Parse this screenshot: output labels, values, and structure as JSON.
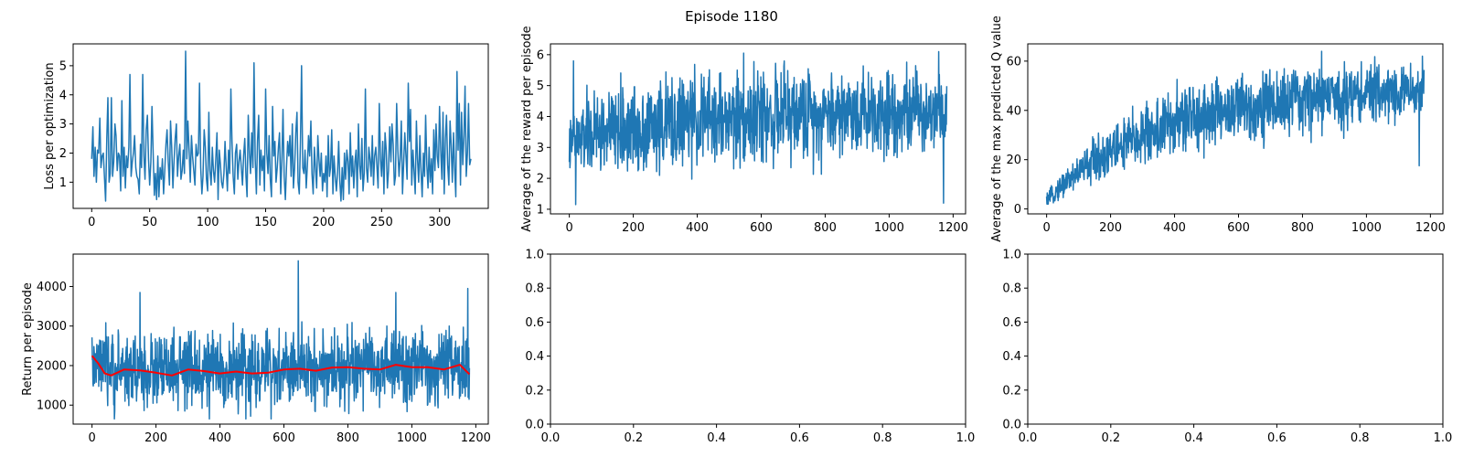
{
  "figure": {
    "title": "Episode 1180",
    "colors": {
      "series": "#1f77b4",
      "smoothed": "#ff0000",
      "axes": "#000000",
      "background": "#ffffff"
    }
  },
  "chart_data": [
    {
      "id": "loss",
      "type": "line",
      "title": "",
      "xlabel": "",
      "ylabel": "Loss per optimization",
      "xlim": [
        -16,
        342
      ],
      "ylim": [
        0.1,
        5.75
      ],
      "xticks": [
        0,
        50,
        100,
        150,
        200,
        250,
        300
      ],
      "yticks": [
        1,
        2,
        3,
        4,
        5
      ],
      "series": [
        {
          "x_range": [
            0,
            327
          ],
          "values": [
            1.8,
            2.9,
            1.2,
            2.2,
            1.0,
            2.1,
            2.0,
            3.2,
            1.5,
            1.9,
            2.0,
            1.2,
            0.35,
            2.5,
            3.9,
            1.0,
            1.3,
            3.9,
            1.2,
            1.7,
            3.0,
            2.6,
            1.4,
            2.0,
            1.9,
            0.7,
            3.8,
            1.2,
            2.2,
            0.8,
            1.9,
            1.5,
            2.2,
            4.7,
            1.2,
            1.7,
            2.0,
            2.6,
            1.5,
            1.2,
            1.1,
            0.6,
            2.3,
            1.5,
            4.7,
            1.9,
            1.1,
            2.8,
            3.3,
            1.8,
            0.9,
            1.7,
            3.6,
            2.0,
            0.55,
            1.3,
            0.4,
            1.9,
            0.5,
            1.5,
            1.1,
            1.8,
            0.6,
            1.4,
            2.3,
            2.8,
            1.7,
            0.9,
            3.1,
            2.2,
            0.8,
            1.7,
            2.5,
            3.0,
            1.2,
            1.9,
            2.3,
            1.1,
            1.4,
            2.1,
            1.3,
            5.5,
            1.8,
            3.1,
            2.1,
            1.0,
            2.6,
            1.9,
            1.4,
            0.9,
            2.3,
            1.9,
            2.0,
            4.4,
            1.5,
            0.6,
            1.2,
            2.8,
            2.2,
            1.1,
            0.7,
            3.4,
            1.4,
            0.9,
            2.2,
            1.4,
            1.0,
            1.8,
            2.7,
            0.4,
            2.1,
            1.6,
            1.0,
            0.8,
            1.3,
            2.4,
            1.5,
            0.7,
            2.1,
            1.3,
            4.2,
            2.4,
            1.2,
            0.6,
            2.0,
            2.3,
            1.1,
            1.7,
            2.1,
            1.5,
            0.9,
            1.9,
            2.5,
            1.2,
            0.5,
            3.3,
            2.0,
            1.3,
            2.7,
            1.5,
            5.1,
            1.8,
            0.6,
            2.4,
            3.3,
            0.9,
            2.1,
            1.4,
            1.9,
            0.7,
            4.2,
            2.0,
            1.3,
            2.6,
            1.1,
            0.5,
            3.6,
            1.9,
            2.4,
            1.0,
            1.5,
            2.2,
            2.7,
            0.6,
            1.8,
            3.5,
            1.2,
            0.4,
            1.5,
            2.4,
            1.9,
            2.6,
            1.2,
            3.0,
            0.8,
            1.5,
            2.7,
            3.4,
            1.0,
            0.6,
            2.4,
            5.0,
            1.5,
            1.3,
            2.1,
            0.8,
            1.6,
            2.6,
            1.9,
            3.1,
            1.3,
            0.6,
            2.2,
            1.5,
            0.8,
            2.6,
            1.8,
            1.2,
            2.0,
            0.7,
            1.3,
            1.0,
            1.9,
            0.5,
            2.6,
            1.2,
            1.5,
            2.8,
            0.6,
            1.9,
            1.2,
            0.7,
            1.3,
            2.4,
            1.0,
            0.35,
            1.5,
            0.4,
            2.0,
            1.1,
            2.1,
            1.7,
            0.6,
            2.7,
            1.2,
            1.9,
            0.8,
            1.7,
            2.1,
            0.5,
            3.0,
            1.6,
            1.1,
            2.5,
            0.7,
            1.3,
            4.2,
            1.5,
            1.0,
            2.2,
            1.8,
            1.2,
            2.6,
            0.9,
            1.9,
            2.2,
            1.5,
            0.8,
            3.7,
            1.8,
            1.2,
            2.4,
            0.6,
            2.7,
            2.1,
            0.8,
            1.4,
            2.9,
            1.7,
            3.0,
            2.3,
            0.9,
            1.2,
            3.7,
            2.1,
            1.2,
            1.8,
            3.1,
            0.6,
            1.6,
            2.7,
            1.9,
            1.1,
            4.4,
            2.4,
            3.5,
            0.9,
            2.1,
            1.4,
            0.6,
            3.1,
            1.8,
            1.0,
            2.6,
            1.4,
            0.5,
            2.0,
            1.2,
            3.3,
            1.6,
            0.8,
            2.2,
            1.0,
            1.8,
            0.6,
            2.8,
            1.4,
            3.0,
            1.9,
            1.5,
            3.6,
            2.1,
            1.1,
            3.4,
            0.6,
            2.5,
            3.3,
            1.6,
            0.9,
            3.1,
            2.3,
            1.0,
            2.7,
            1.5,
            0.5,
            4.8,
            2.1,
            3.7,
            0.9,
            3.4,
            1.6,
            2.6,
            4.3,
            1.2,
            2.0,
            3.7,
            1.6,
            1.8
          ]
        }
      ]
    },
    {
      "id": "reward",
      "type": "line",
      "title": "",
      "xlabel": "",
      "ylabel": "Average of the reward per episode",
      "xlim": [
        -59,
        1239
      ],
      "ylim": [
        0.85,
        6.35
      ],
      "xticks": [
        0,
        200,
        400,
        600,
        800,
        1000,
        1200
      ],
      "yticks": [
        1,
        2,
        3,
        4,
        5,
        6
      ],
      "series": [
        {
          "x_range": [
            0,
            1180
          ],
          "keypoints": [
            {
              "x": 0,
              "mean": 3.0,
              "spread": 1.3
            },
            {
              "x": 50,
              "mean": 3.4,
              "spread": 2.0
            },
            {
              "x": 200,
              "mean": 3.6,
              "spread": 2.2
            },
            {
              "x": 400,
              "mean": 3.9,
              "spread": 2.3
            },
            {
              "x": 600,
              "mean": 4.0,
              "spread": 2.3
            },
            {
              "x": 800,
              "mean": 4.1,
              "spread": 2.2
            },
            {
              "x": 1000,
              "mean": 4.2,
              "spread": 2.1
            },
            {
              "x": 1180,
              "mean": 4.2,
              "spread": 2.0
            }
          ],
          "min": 1.15,
          "max": 6.15,
          "extremes": [
            [
              13,
              5.8
            ],
            [
              20,
              1.15
            ],
            [
              1170,
              1.2
            ],
            [
              1155,
              6.1
            ],
            [
              545,
              6.05
            ]
          ]
        }
      ]
    },
    {
      "id": "q_value",
      "type": "line",
      "title": "",
      "xlabel": "",
      "ylabel": "Average of the max predicted Q value",
      "xlim": [
        -59,
        1239
      ],
      "ylim": [
        -2,
        67
      ],
      "xticks": [
        0,
        200,
        400,
        600,
        800,
        1000,
        1200
      ],
      "yticks": [
        0,
        20,
        40,
        60
      ],
      "series": [
        {
          "x_range": [
            0,
            1180
          ],
          "keypoints": [
            {
              "x": 0,
              "mean": 3,
              "spread": 4
            },
            {
              "x": 50,
              "mean": 10,
              "spread": 8
            },
            {
              "x": 150,
              "mean": 20,
              "spread": 14
            },
            {
              "x": 300,
              "mean": 30,
              "spread": 20
            },
            {
              "x": 450,
              "mean": 37,
              "spread": 22
            },
            {
              "x": 600,
              "mean": 41,
              "spread": 22
            },
            {
              "x": 800,
              "mean": 44,
              "spread": 21
            },
            {
              "x": 1000,
              "mean": 47,
              "spread": 18
            },
            {
              "x": 1180,
              "mean": 48,
              "spread": 16
            }
          ],
          "min": 2,
          "max": 64,
          "extremes": [
            [
              0,
              5
            ],
            [
              5,
              2
            ],
            [
              1165,
              17.5
            ],
            [
              860,
              64
            ],
            [
              1175,
              62
            ]
          ]
        }
      ]
    },
    {
      "id": "return",
      "type": "line",
      "title": "",
      "xlabel": "",
      "ylabel": "Return per episode",
      "xlim": [
        -59,
        1239
      ],
      "ylim": [
        520,
        4820
      ],
      "xticks": [
        0,
        200,
        400,
        600,
        800,
        1000,
        1200
      ],
      "yticks": [
        1000,
        2000,
        3000,
        4000
      ],
      "series": [
        {
          "x_range": [
            0,
            1180
          ],
          "keypoints": [
            {
              "x": 0,
              "mean": 1950,
              "spread": 1300
            },
            {
              "x": 200,
              "mean": 1850,
              "spread": 1500
            },
            {
              "x": 400,
              "mean": 1850,
              "spread": 1500
            },
            {
              "x": 600,
              "mean": 1900,
              "spread": 1500
            },
            {
              "x": 800,
              "mean": 1950,
              "spread": 1500
            },
            {
              "x": 1000,
              "mean": 1950,
              "spread": 1500
            },
            {
              "x": 1180,
              "mean": 1900,
              "spread": 1400
            }
          ],
          "min": 650,
          "max": 4650,
          "extremes": [
            [
              645,
              4650
            ],
            [
              150,
              3850
            ],
            [
              1175,
              3950
            ],
            [
              950,
              3850
            ],
            [
              70,
              650
            ],
            [
              560,
              650
            ]
          ]
        },
        {
          "x_range": [
            0,
            1180
          ],
          "smoothed_points": [
            [
              0,
              2250
            ],
            [
              20,
              2050
            ],
            [
              40,
              1800
            ],
            [
              60,
              1750
            ],
            [
              100,
              1900
            ],
            [
              150,
              1880
            ],
            [
              200,
              1820
            ],
            [
              250,
              1750
            ],
            [
              300,
              1900
            ],
            [
              350,
              1860
            ],
            [
              400,
              1800
            ],
            [
              450,
              1850
            ],
            [
              500,
              1800
            ],
            [
              550,
              1820
            ],
            [
              600,
              1900
            ],
            [
              650,
              1920
            ],
            [
              700,
              1870
            ],
            [
              750,
              1950
            ],
            [
              800,
              1960
            ],
            [
              850,
              1920
            ],
            [
              900,
              1900
            ],
            [
              950,
              2020
            ],
            [
              1000,
              1960
            ],
            [
              1050,
              1960
            ],
            [
              1100,
              1900
            ],
            [
              1150,
              2020
            ],
            [
              1180,
              1780
            ]
          ]
        }
      ]
    },
    {
      "id": "empty_1",
      "type": "line",
      "title": "",
      "xlabel": "",
      "ylabel": "",
      "xlim": [
        0,
        1
      ],
      "ylim": [
        0,
        1
      ],
      "xticks": [
        0.0,
        0.2,
        0.4,
        0.6,
        0.8,
        1.0
      ],
      "yticks": [
        0.0,
        0.2,
        0.4,
        0.6,
        0.8,
        1.0
      ],
      "xtick_labels": [
        "0.0",
        "0.2",
        "0.4",
        "0.6",
        "0.8",
        "1.0"
      ],
      "ytick_labels": [
        "0.0",
        "0.2",
        "0.4",
        "0.6",
        "0.8",
        "1.0"
      ],
      "series": []
    },
    {
      "id": "empty_2",
      "type": "line",
      "title": "",
      "xlabel": "",
      "ylabel": "",
      "xlim": [
        0,
        1
      ],
      "ylim": [
        0,
        1
      ],
      "xticks": [
        0.0,
        0.2,
        0.4,
        0.6,
        0.8,
        1.0
      ],
      "yticks": [
        0.0,
        0.2,
        0.4,
        0.6,
        0.8,
        1.0
      ],
      "xtick_labels": [
        "0.0",
        "0.2",
        "0.4",
        "0.6",
        "0.8",
        "1.0"
      ],
      "ytick_labels": [
        "0.0",
        "0.2",
        "0.4",
        "0.6",
        "0.8",
        "1.0"
      ],
      "series": []
    }
  ]
}
